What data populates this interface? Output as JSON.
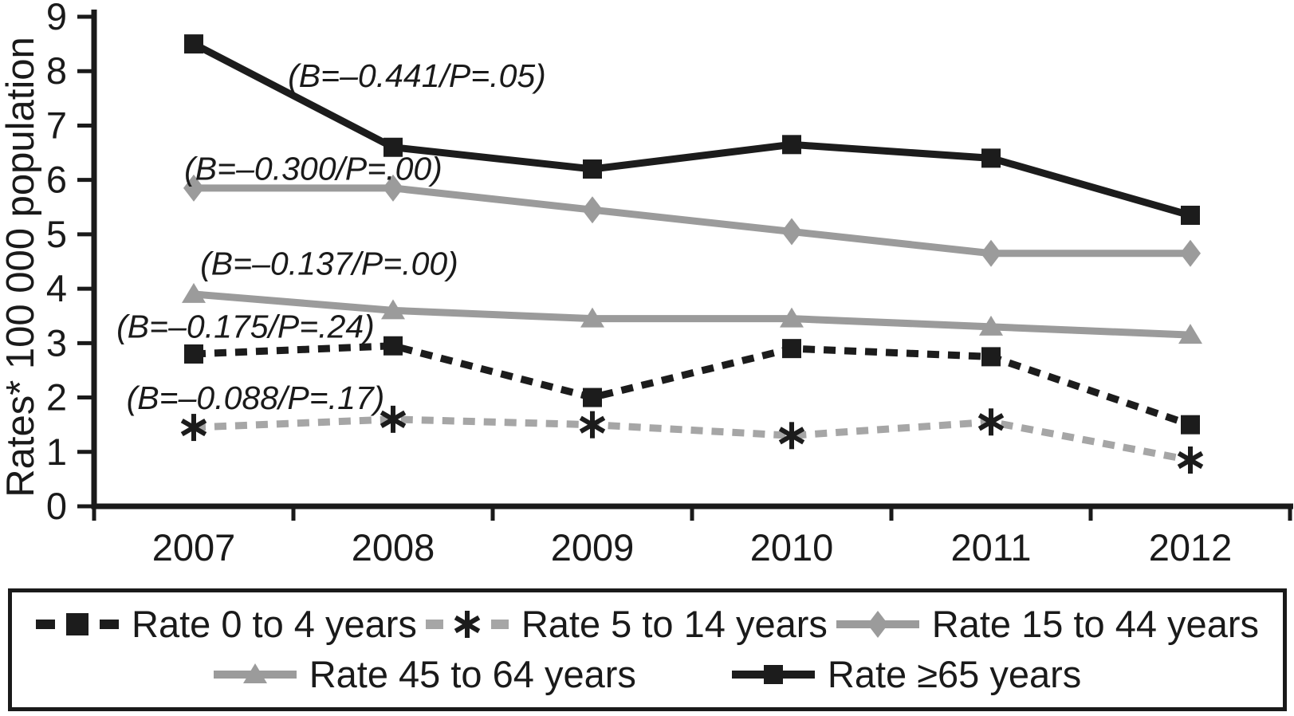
{
  "figure": {
    "background": "#ffffff",
    "text_color": "#1a1a1a"
  },
  "chart_data": {
    "type": "line",
    "title": "",
    "xlabel": "",
    "ylabel": "Rates* 100 000 population",
    "categories": [
      "2007",
      "2008",
      "2009",
      "2010",
      "2011",
      "2012"
    ],
    "y_ticks": [
      "0",
      "1",
      "2",
      "3",
      "4",
      "5",
      "6",
      "7",
      "8",
      "9"
    ],
    "ylim": [
      0,
      9
    ],
    "grid": false,
    "legend_position": "bottom",
    "series": [
      {
        "name": "Rate 0 to 4 years",
        "values": [
          2.8,
          2.95,
          2.0,
          2.9,
          2.75,
          1.5
        ],
        "color": "#1c1c1c",
        "line_style": "dashed",
        "marker": "square",
        "marker_color": "#1c1c1c"
      },
      {
        "name": "Rate 5 to 14 years",
        "values": [
          1.45,
          1.6,
          1.5,
          1.3,
          1.55,
          0.85
        ],
        "color": "#a6a6a6",
        "line_style": "dashed",
        "marker": "asterisk",
        "marker_color": "#1c1c1c"
      },
      {
        "name": "Rate 15 to 44 years",
        "values": [
          5.85,
          5.85,
          5.45,
          5.05,
          4.65,
          4.65
        ],
        "color": "#9b9b9b",
        "line_style": "solid",
        "marker": "diamond",
        "marker_color": "#9b9b9b"
      },
      {
        "name": "Rate 45 to 64 years",
        "values": [
          3.9,
          3.6,
          3.45,
          3.45,
          3.3,
          3.15
        ],
        "color": "#9b9b9b",
        "line_style": "solid",
        "marker": "triangle",
        "marker_color": "#9b9b9b"
      },
      {
        "name": "Rate ≥65 years",
        "values": [
          8.5,
          6.6,
          6.2,
          6.65,
          6.4,
          5.35
        ],
        "color": "#1c1c1c",
        "line_style": "solid",
        "marker": "square",
        "marker_color": "#1c1c1c"
      }
    ],
    "annotations": [
      {
        "series": "Rate ≥65 years",
        "text": "(B=–0.441/P=.05)",
        "x": 1.62,
        "y": 7.9
      },
      {
        "series": "Rate 15 to 44 years",
        "text": "(B=–0.300/P=.00)",
        "x": 1.1,
        "y": 6.19
      },
      {
        "series": "Rate 45 to 64 years",
        "text": "(B=–0.137/P=.00)",
        "x": 1.18,
        "y": 4.45
      },
      {
        "series": "Rate 0 to 4 years",
        "text": "(B=–0.175/P=.24)",
        "x": 0.76,
        "y": 3.29
      },
      {
        "series": "Rate 5 to 14 years",
        "text": "(B=–0.088/P=.17)",
        "x": 0.81,
        "y": 1.98
      }
    ]
  }
}
